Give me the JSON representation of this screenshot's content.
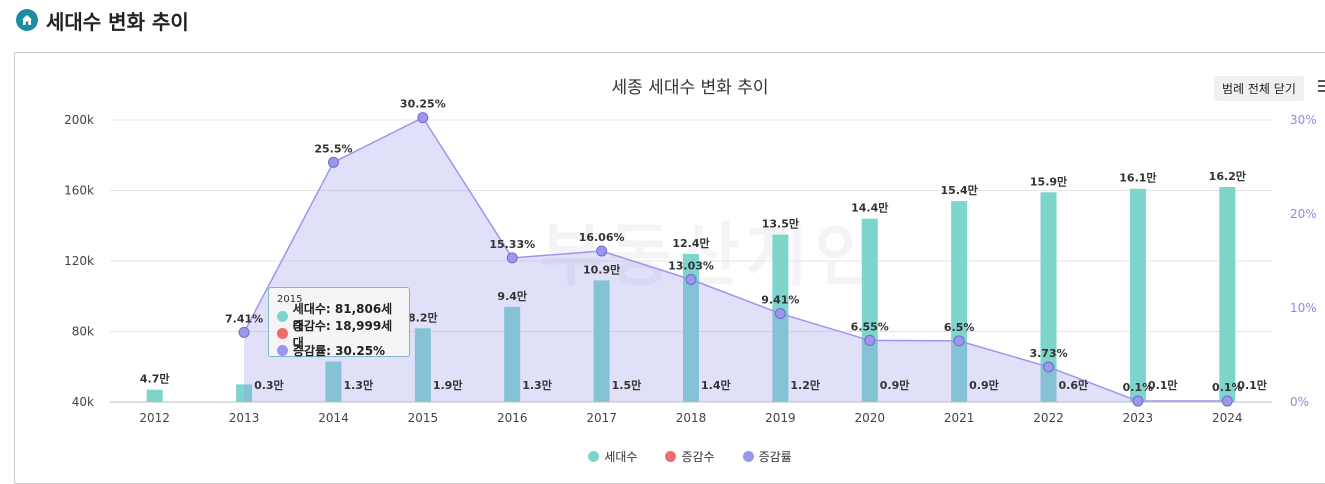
{
  "page": {
    "title": "세대수 변화 추이"
  },
  "panel": {
    "legend_toggle": "범례 전체 닫기"
  },
  "watermark": "부동산지인",
  "tooltip": {
    "year": "2015",
    "rows": [
      "세대수: 81,806세대",
      "증감수: 18,999세대",
      "증감률: 30.25%"
    ]
  },
  "colors": {
    "households": "#7dd5cc",
    "change_count": "#f26b6b",
    "change_rate": "#9b97ea",
    "bar_overlay": "#8cc2dc"
  },
  "chart_data": {
    "type": "bar",
    "title": "세종 세대수 변화 추이",
    "categories": [
      "2012",
      "2013",
      "2014",
      "2015",
      "2016",
      "2017",
      "2018",
      "2019",
      "2020",
      "2021",
      "2022",
      "2023",
      "2024"
    ],
    "y_left": {
      "ylim": [
        40000,
        200000
      ],
      "ticks": [
        40000,
        80000,
        120000,
        160000,
        200000
      ],
      "tick_labels": [
        "40k",
        "80k",
        "120k",
        "160k",
        "200k"
      ]
    },
    "y_right": {
      "ylim": [
        0,
        30
      ],
      "ticks": [
        0,
        10,
        20,
        30
      ],
      "tick_labels": [
        "0%",
        "10%",
        "20%",
        "30%"
      ]
    },
    "series": [
      {
        "name": "세대수",
        "type": "bar",
        "axis": "left",
        "values": [
          47000,
          50000,
          63000,
          81806,
          94000,
          109000,
          124000,
          135000,
          144000,
          154000,
          159000,
          161000,
          162000
        ],
        "labels": [
          "4.7만",
          "",
          "",
          "8.2만",
          "9.4만",
          "10.9만",
          "12.4만",
          "13.5만",
          "14.4만",
          "15.4만",
          "15.9만",
          "16.1만",
          "16.2만"
        ]
      },
      {
        "name": "증감수",
        "type": "bar",
        "axis": "left",
        "values": [
          null,
          3000,
          13000,
          18999,
          13000,
          15000,
          14000,
          12000,
          9000,
          9000,
          6000,
          1000,
          1000
        ],
        "labels": [
          "",
          "0.3만",
          "1.3만",
          "1.9만",
          "1.3만",
          "1.5만",
          "1.4만",
          "1.2만",
          "0.9만",
          "0.9만",
          "0.6만",
          "0.1만",
          "0.1만"
        ]
      },
      {
        "name": "증감률",
        "type": "area",
        "axis": "right",
        "values": [
          null,
          7.41,
          25.5,
          30.25,
          15.33,
          16.06,
          13.03,
          9.41,
          6.55,
          6.5,
          3.73,
          0.1,
          0.1
        ],
        "labels": [
          "",
          "7.41%",
          "25.5%",
          "30.25%",
          "15.33%",
          "16.06%",
          "13.03%",
          "9.41%",
          "6.55%",
          "6.5%",
          "3.73%",
          "0.1%",
          "0.1%"
        ]
      }
    ],
    "legend": [
      "세대수",
      "증감수",
      "증감률"
    ],
    "legend_position": "bottom"
  }
}
